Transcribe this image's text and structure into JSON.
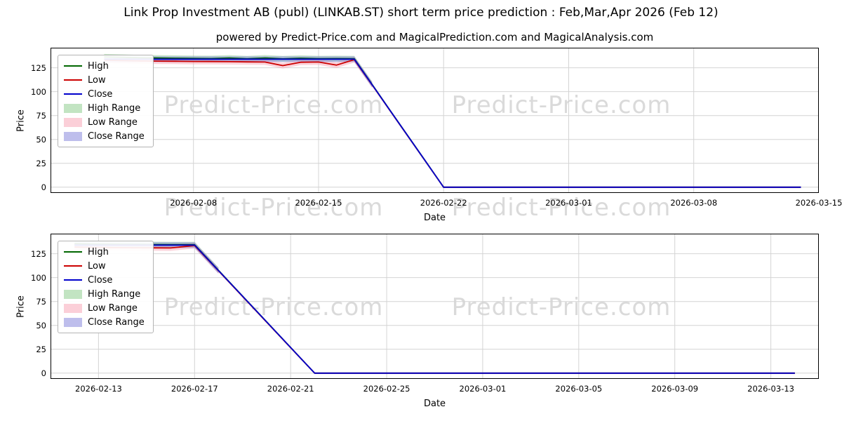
{
  "page": {
    "title": "Link Prop Investment AB (publ) (LINKAB.ST) short term price prediction : Feb,Mar,Apr 2026 (Feb 12)",
    "subtitle": "powered by Predict-Price.com and MagicalPrediction.com and MagicalAnalysis.com"
  },
  "watermark": {
    "text": "Predict-Price.com"
  },
  "chart_data": [
    {
      "type": "line",
      "xlabel": "Date",
      "ylabel": "Price",
      "ylim": [
        -6,
        146
      ],
      "yticks": [
        0,
        25,
        50,
        75,
        100,
        125
      ],
      "x_start": "2026-01-31",
      "x_end": "2026-03-15",
      "xticks": [
        "2026-02-08",
        "2026-02-15",
        "2026-02-22",
        "2026-03-01",
        "2026-03-08",
        "2026-03-15"
      ],
      "grid": true,
      "legend_position": "upper left",
      "dates": [
        "2026-02-03",
        "2026-02-04",
        "2026-02-05",
        "2026-02-06",
        "2026-02-07",
        "2026-02-08",
        "2026-02-09",
        "2026-02-10",
        "2026-02-11",
        "2026-02-12",
        "2026-02-13",
        "2026-02-14",
        "2026-02-15",
        "2026-02-16",
        "2026-02-17",
        "2026-02-18",
        "2026-02-19",
        "2026-02-20",
        "2026-02-21",
        "2026-02-22",
        "2026-02-23",
        "2026-02-24",
        "2026-02-25",
        "2026-02-26",
        "2026-02-27",
        "2026-02-28",
        "2026-03-01",
        "2026-03-02",
        "2026-03-03",
        "2026-03-04",
        "2026-03-05",
        "2026-03-06",
        "2026-03-07",
        "2026-03-08",
        "2026-03-09",
        "2026-03-10",
        "2026-03-11",
        "2026-03-12",
        "2026-03-13",
        "2026-03-14"
      ],
      "series": [
        {
          "name": "High",
          "color": "#006600",
          "values": [
            136.5,
            136,
            135.5,
            135.2,
            135,
            134.8,
            134.6,
            135.2,
            134.4,
            135.3,
            134.3,
            135,
            134.5,
            134.6,
            134.5,
            107.5,
            80.6,
            53.8,
            26.9,
            0,
            0,
            0,
            0,
            0,
            0,
            0,
            0,
            0,
            0,
            0,
            0,
            0,
            0,
            0,
            0,
            0,
            0,
            0,
            0,
            0
          ]
        },
        {
          "name": "Low",
          "color": "#cc0000",
          "values": [
            133,
            132.5,
            132.2,
            132,
            131.8,
            131.6,
            131.5,
            131.4,
            131.2,
            131,
            127.3,
            130.8,
            131,
            127.8,
            133.5,
            107,
            80.2,
            53.4,
            26.7,
            0,
            0,
            0,
            0,
            0,
            0,
            0,
            0,
            0,
            0,
            0,
            0,
            0,
            0,
            0,
            0,
            0,
            0,
            0,
            0,
            0
          ]
        },
        {
          "name": "Close",
          "color": "#0000cc",
          "values": [
            134,
            134,
            134,
            134,
            134,
            134,
            134,
            134,
            134,
            134,
            134,
            134,
            134,
            134,
            134,
            107.2,
            80.4,
            53.6,
            26.8,
            0,
            0,
            0,
            0,
            0,
            0,
            0,
            0,
            0,
            0,
            0,
            0,
            0,
            0,
            0,
            0,
            0,
            0,
            0,
            0,
            0
          ]
        }
      ],
      "bands": [
        {
          "name": "High Range",
          "color": "#8fce8f",
          "upper": [
            139.5,
            139,
            138.5,
            138.2,
            138,
            137.8,
            137.6,
            138.2,
            137.4,
            138.3,
            137.3,
            138,
            137.5,
            137.6,
            137.5,
            110.5
          ],
          "lower": [
            133.5,
            133,
            132.5,
            132.2,
            132,
            131.8,
            131.6,
            132.2,
            131.4,
            132.3,
            131.3,
            132,
            131.5,
            131.6,
            131.5,
            104.5
          ]
        },
        {
          "name": "Low Range",
          "color": "#f7a8b8",
          "upper": [
            136,
            135.5,
            135.2,
            135,
            134.8,
            134.6,
            134.5,
            134.4,
            134.2,
            134,
            130.3,
            133.8,
            134,
            130.8,
            136.5,
            110
          ],
          "lower": [
            130,
            129.5,
            129.2,
            129,
            128.8,
            128.6,
            128.5,
            128.4,
            128.2,
            128,
            124.3,
            127.8,
            128,
            124.8,
            130.5,
            104
          ]
        },
        {
          "name": "Close Range",
          "color": "#8888dd",
          "upper": [
            137,
            137,
            137,
            137,
            137,
            137,
            137,
            137,
            137,
            137,
            137,
            137,
            137,
            137,
            137,
            110.2
          ],
          "lower": [
            131,
            131,
            131,
            131,
            131,
            131,
            131,
            131,
            131,
            131,
            131,
            131,
            131,
            131,
            131,
            104.2
          ]
        }
      ]
    },
    {
      "type": "line",
      "xlabel": "Date",
      "ylabel": "Price",
      "ylim": [
        -6,
        146
      ],
      "yticks": [
        0,
        25,
        50,
        75,
        100,
        125
      ],
      "x_start": "2026-02-11",
      "x_end": "2026-03-15",
      "xticks": [
        "2026-02-13",
        "2026-02-17",
        "2026-02-21",
        "2026-02-25",
        "2026-03-01",
        "2026-03-05",
        "2026-03-09",
        "2026-03-13"
      ],
      "grid": true,
      "legend_position": "upper left",
      "dates": [
        "2026-02-12",
        "2026-02-13",
        "2026-02-14",
        "2026-02-15",
        "2026-02-16",
        "2026-02-17",
        "2026-02-18",
        "2026-02-19",
        "2026-02-20",
        "2026-02-21",
        "2026-02-22",
        "2026-02-23",
        "2026-02-24",
        "2026-02-25",
        "2026-02-26",
        "2026-02-27",
        "2026-02-28",
        "2026-03-01",
        "2026-03-02",
        "2026-03-03",
        "2026-03-04",
        "2026-03-05",
        "2026-03-06",
        "2026-03-07",
        "2026-03-08",
        "2026-03-09",
        "2026-03-10",
        "2026-03-11",
        "2026-03-12",
        "2026-03-13",
        "2026-03-14"
      ],
      "series": [
        {
          "name": "High",
          "color": "#006600",
          "values": [
            135.5,
            135,
            134.8,
            134.6,
            134.5,
            134.5,
            107.5,
            80.6,
            53.8,
            26.9,
            0,
            0,
            0,
            0,
            0,
            0,
            0,
            0,
            0,
            0,
            0,
            0,
            0,
            0,
            0,
            0,
            0,
            0,
            0,
            0,
            0
          ]
        },
        {
          "name": "Low",
          "color": "#cc0000",
          "values": [
            132,
            131.5,
            131.3,
            131.2,
            131,
            133.5,
            107,
            80.2,
            53.4,
            26.7,
            0,
            0,
            0,
            0,
            0,
            0,
            0,
            0,
            0,
            0,
            0,
            0,
            0,
            0,
            0,
            0,
            0,
            0,
            0,
            0,
            0
          ]
        },
        {
          "name": "Close",
          "color": "#0000cc",
          "values": [
            134,
            134,
            134,
            134,
            134,
            134,
            107.2,
            80.4,
            53.6,
            26.8,
            0,
            0,
            0,
            0,
            0,
            0,
            0,
            0,
            0,
            0,
            0,
            0,
            0,
            0,
            0,
            0,
            0,
            0,
            0,
            0,
            0
          ]
        }
      ],
      "bands": [
        {
          "name": "High Range",
          "color": "#8fce8f",
          "upper": [
            138.5,
            138,
            137.8,
            137.6,
            137.5,
            137.5,
            110.5
          ],
          "lower": [
            132.5,
            132,
            131.8,
            131.6,
            131.5,
            131.5,
            104.5
          ]
        },
        {
          "name": "Low Range",
          "color": "#f7a8b8",
          "upper": [
            135,
            134.5,
            134.3,
            134.2,
            134,
            136.5,
            110
          ],
          "lower": [
            129,
            128.5,
            128.3,
            128.2,
            128,
            130.5,
            104
          ]
        },
        {
          "name": "Close Range",
          "color": "#8888dd",
          "upper": [
            137,
            137,
            137,
            137,
            137,
            137,
            110.2
          ],
          "lower": [
            131,
            131,
            131,
            131,
            131,
            131,
            104.2
          ]
        }
      ]
    }
  ]
}
